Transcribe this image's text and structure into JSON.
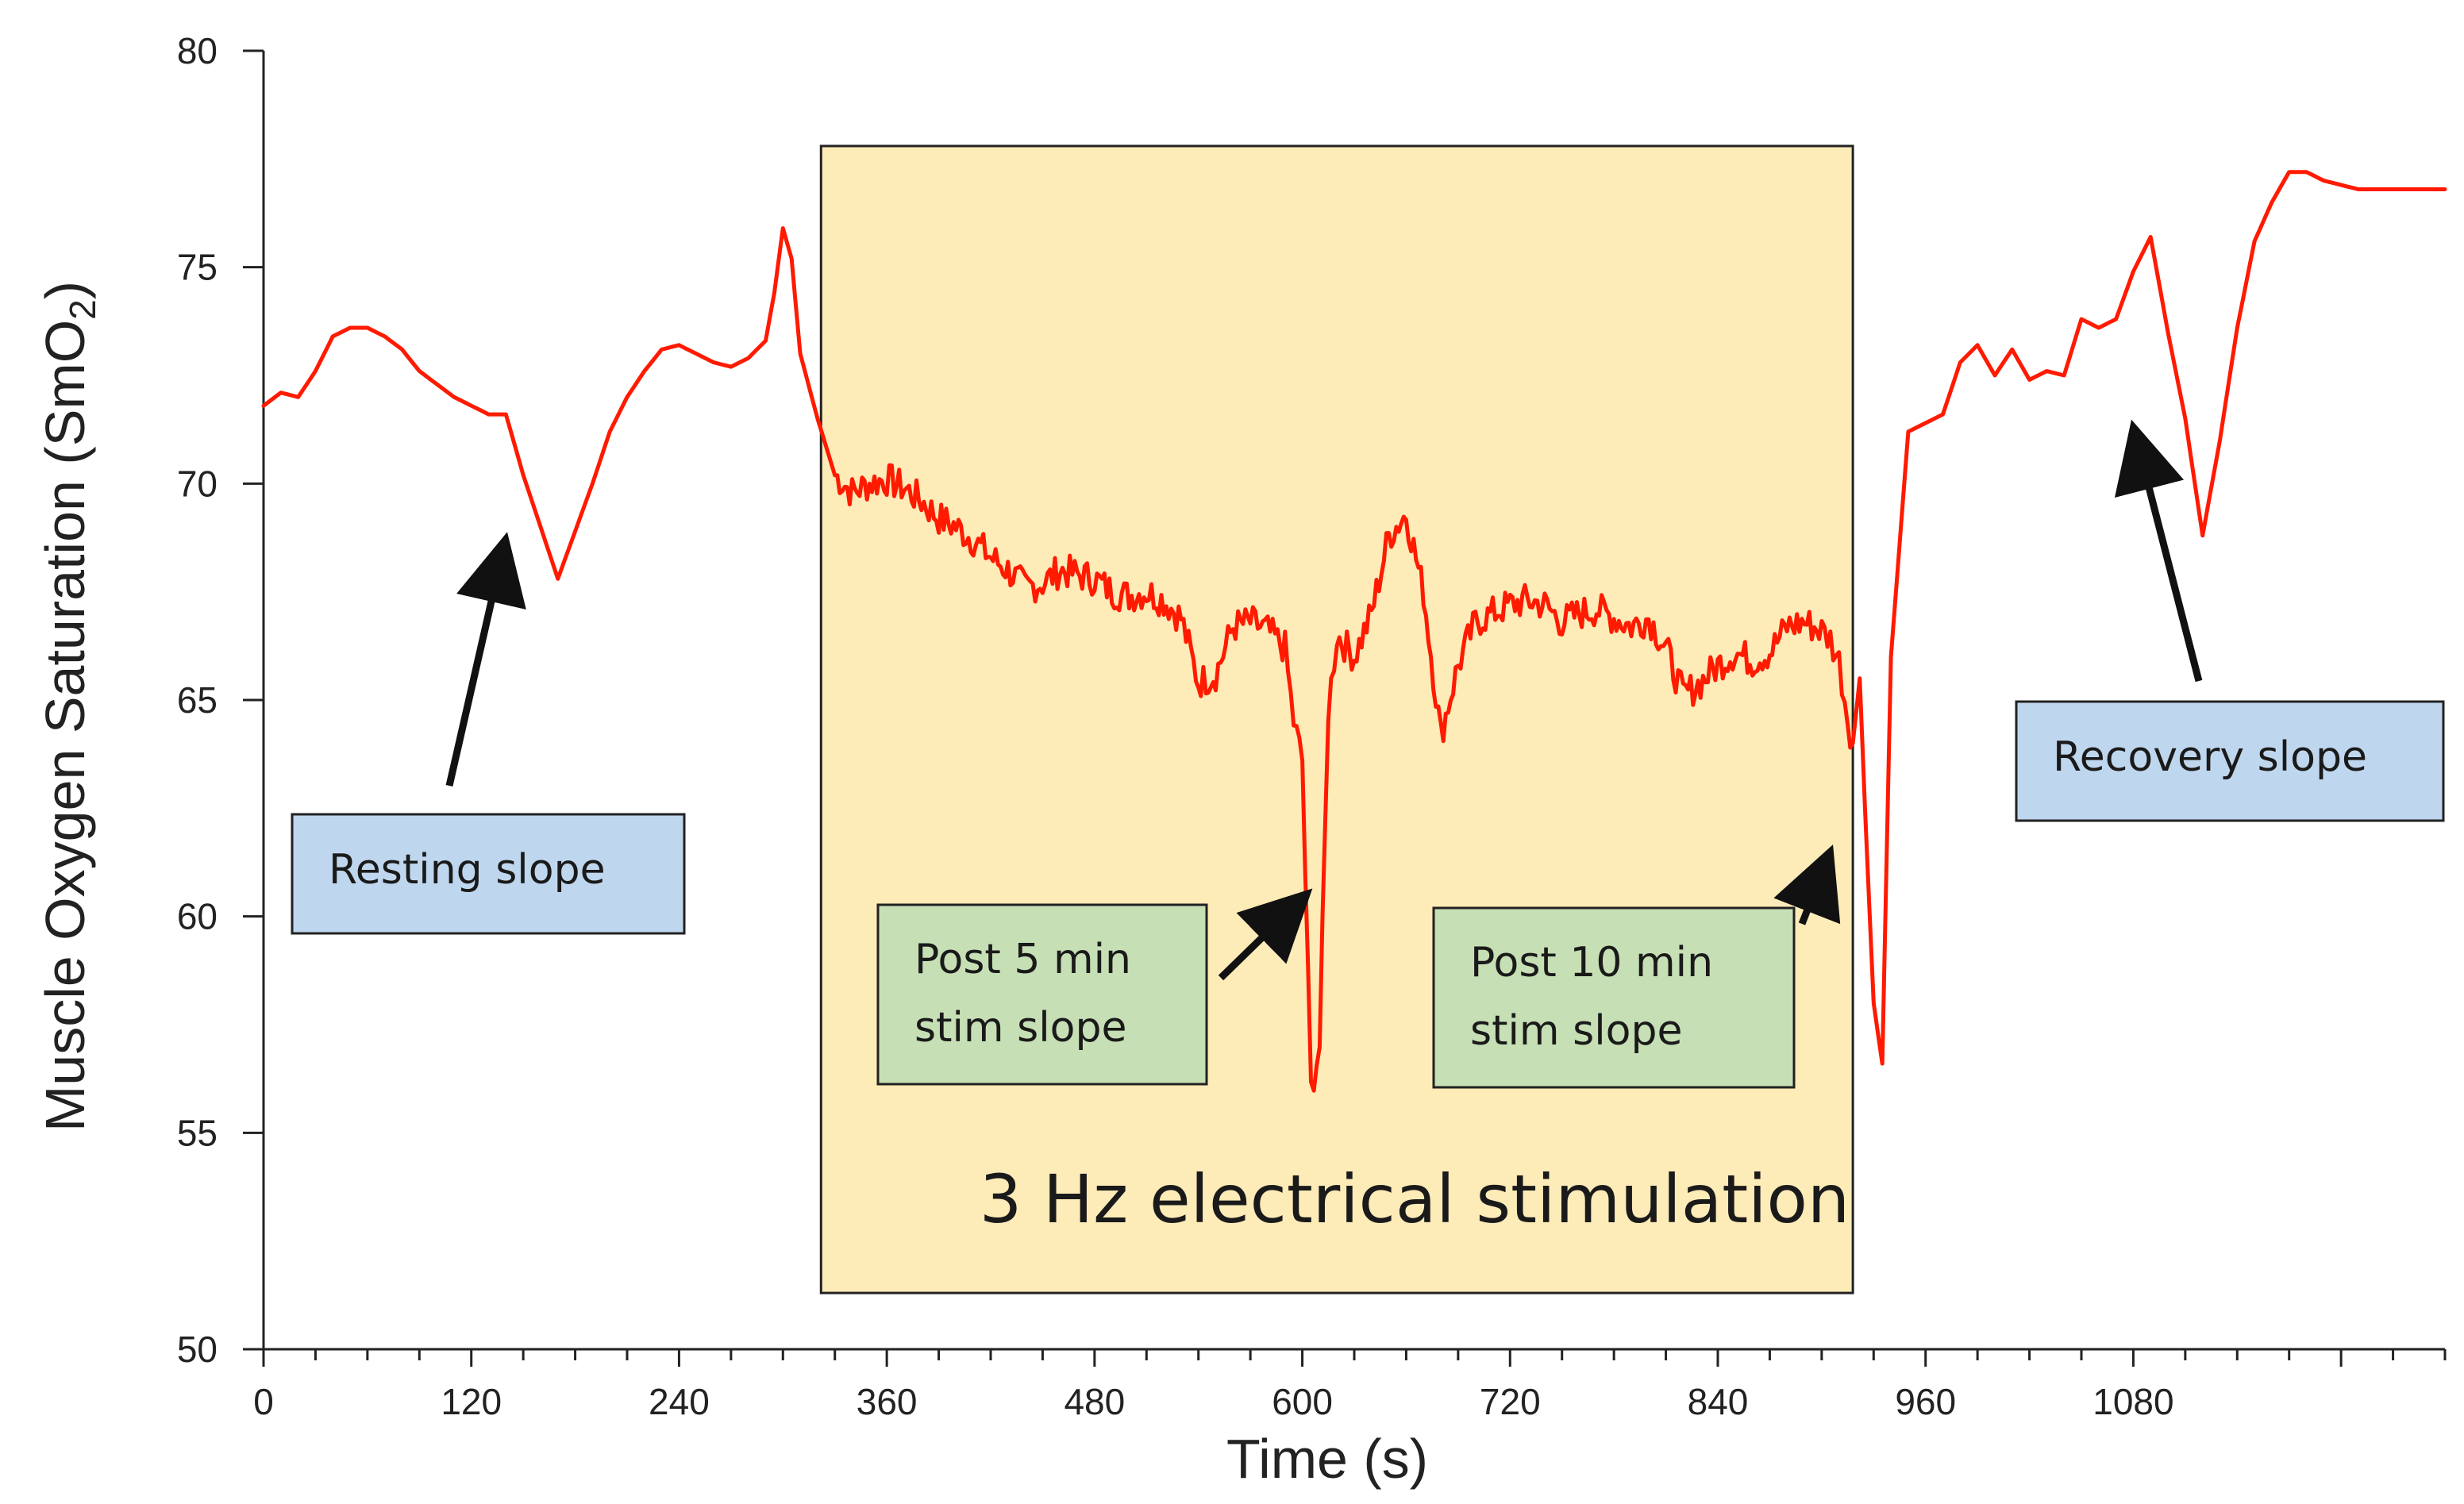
{
  "chart_data": {
    "type": "line",
    "title": "",
    "xlabel": "Time (s)",
    "ylabel": "Muscle Oxygen Saturation (SmO",
    "ylabel_subscript": "2",
    "ylabel_close": ")",
    "xlim": [
      0,
      1260
    ],
    "ylim": [
      50,
      80
    ],
    "xticks": [
      0,
      120,
      240,
      360,
      480,
      600,
      720,
      840,
      960,
      1080
    ],
    "xtick_labels": [
      "0",
      "120",
      "240",
      "360",
      "480",
      "600",
      "720",
      "840",
      "960",
      "1080"
    ],
    "yticks": [
      50,
      55,
      60,
      65,
      70,
      75,
      80
    ],
    "ytick_labels": [
      "50",
      "55",
      "60",
      "65",
      70,
      "75",
      "80"
    ],
    "series": [
      {
        "name": "SmO2",
        "color": "#ff1a00",
        "x": [
          0,
          10,
          20,
          30,
          40,
          50,
          60,
          70,
          80,
          90,
          100,
          110,
          120,
          130,
          140,
          150,
          160,
          170,
          180,
          190,
          200,
          210,
          220,
          230,
          240,
          250,
          260,
          270,
          280,
          290,
          295,
          300,
          305,
          310,
          320,
          330,
          340,
          350,
          360,
          370,
          380,
          390,
          400,
          410,
          420,
          430,
          440,
          450,
          460,
          470,
          480,
          490,
          500,
          510,
          520,
          530,
          540,
          550,
          560,
          570,
          580,
          590,
          595,
          600,
          605,
          610,
          615,
          620,
          630,
          640,
          650,
          660,
          670,
          680,
          690,
          700,
          710,
          720,
          730,
          740,
          750,
          760,
          770,
          780,
          790,
          800,
          810,
          820,
          830,
          840,
          850,
          860,
          870,
          880,
          890,
          900,
          905,
          910,
          915,
          918,
          922,
          925,
          930,
          935,
          940,
          950,
          960,
          970,
          980,
          990,
          1000,
          1010,
          1020,
          1030,
          1040,
          1050,
          1060,
          1070,
          1080,
          1090,
          1100,
          1110,
          1120,
          1130,
          1140,
          1150,
          1160,
          1170,
          1180,
          1190,
          1200,
          1210,
          1220,
          1230,
          1240,
          1250,
          1260
        ],
        "y": [
          71.8,
          72.1,
          72.0,
          72.6,
          73.4,
          73.6,
          73.6,
          73.4,
          73.1,
          72.6,
          72.3,
          72.0,
          71.8,
          71.6,
          71.6,
          70.2,
          69.0,
          67.8,
          68.9,
          70.0,
          71.2,
          72.0,
          72.6,
          73.1,
          73.2,
          73.0,
          72.8,
          72.7,
          72.9,
          73.3,
          74.4,
          75.9,
          75.2,
          73.0,
          71.5,
          70.2,
          69.8,
          70.0,
          70.1,
          69.9,
          69.6,
          69.2,
          69.0,
          68.7,
          68.3,
          68.0,
          67.6,
          67.7,
          68.0,
          67.9,
          67.8,
          67.5,
          67.4,
          67.5,
          67.3,
          66.9,
          65.4,
          65.6,
          66.7,
          66.8,
          66.6,
          66.2,
          64.5,
          63.6,
          56.0,
          57.0,
          64.8,
          66.5,
          66.0,
          67.0,
          68.8,
          69.3,
          67.5,
          64.2,
          65.8,
          66.8,
          67.0,
          67.2,
          67.3,
          67.2,
          66.8,
          67.0,
          67.1,
          66.9,
          66.7,
          66.9,
          66.2,
          65.1,
          65.4,
          65.8,
          66.1,
          65.9,
          66.1,
          66.7,
          66.8,
          66.6,
          66.4,
          65.9,
          64.6,
          64.0,
          65.5,
          62.5,
          58.0,
          56.6,
          66.0,
          71.2,
          71.4,
          71.6,
          72.8,
          73.2,
          72.5,
          73.1,
          72.4,
          72.6,
          72.5,
          73.8,
          73.6,
          73.8,
          74.9,
          75.7,
          73.5,
          71.5,
          68.8,
          71.0,
          73.6,
          75.6,
          76.5,
          77.2,
          77.2,
          77.0,
          76.9,
          76.8,
          76.8,
          76.8,
          76.8,
          76.8,
          76.8
        ]
      }
    ],
    "shaded_region": {
      "x": [
        322,
        918
      ],
      "ylim": [
        51.3,
        77.8
      ],
      "color": "#fdebb8",
      "label": "3 Hz electrical stimulation"
    },
    "annotations": [
      {
        "id": "resting",
        "lines": [
          "Resting slope"
        ],
        "fill": "#bfd7ee",
        "arrow_to": {
          "x": 138,
          "y": 68.4
        }
      },
      {
        "id": "post5",
        "lines": [
          "Post 5 min",
          "stim slope"
        ],
        "fill": "#c6dfb5",
        "arrow_to": {
          "x": 597,
          "y": 60.3
        }
      },
      {
        "id": "post10",
        "lines": [
          "Post 10 min",
          "stim slope"
        ],
        "fill": "#c6dfb5",
        "arrow_to": {
          "x": 902,
          "y": 61.2
        }
      },
      {
        "id": "recovery",
        "lines": [
          "Recovery slope"
        ],
        "fill": "#bfd7ee",
        "arrow_to": {
          "x": 1082,
          "y": 71.0
        }
      }
    ]
  }
}
